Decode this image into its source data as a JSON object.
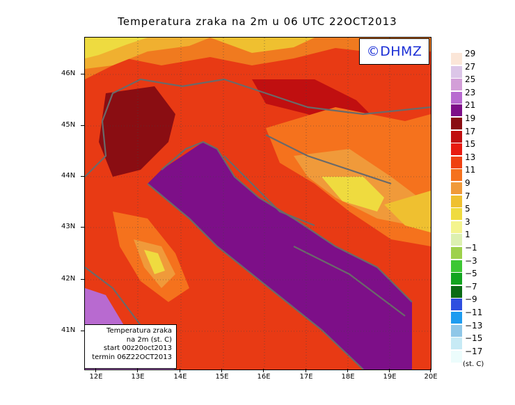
{
  "title": "Temperatura zraka na 2m u 06 UTC 22OCT2013",
  "logo": "©DHMZ",
  "info": {
    "line1": "Temperatura zraka",
    "line2": "na 2m (st. C)",
    "line3": "start 00z20oct2013",
    "line4": "termin 06Z22OCT2013"
  },
  "axes": {
    "lat_labels": [
      "46N",
      "45N",
      "44N",
      "43N",
      "42N",
      "41N"
    ],
    "lon_labels": [
      "12E",
      "13E",
      "14E",
      "15E",
      "16E",
      "17E",
      "18E",
      "19E",
      "20E"
    ]
  },
  "legend": {
    "unit": "(st. C)",
    "labels": [
      "29",
      "27",
      "25",
      "23",
      "21",
      "19",
      "17",
      "15",
      "13",
      "11",
      "9",
      "7",
      "5",
      "3",
      "1",
      "−1",
      "−3",
      "−5",
      "−7",
      "−9",
      "−11",
      "−13",
      "−15",
      "−17"
    ],
    "colors": [
      "#fbe6d8",
      "#dcc6e8",
      "#d39fd8",
      "#b86ad0",
      "#7d0f88",
      "#8a0d12",
      "#c00f10",
      "#e81b10",
      "#ef4111",
      "#f5721d",
      "#f09a3a",
      "#efc030",
      "#efdb3f",
      "#f4f48e",
      "#dcf0b0",
      "#9ed14c",
      "#3cc733",
      "#12a41f",
      "#0a6b15",
      "#2f4fe0",
      "#1e9cf0",
      "#8fc7e8",
      "#c7eaf5",
      "#ecfcfc"
    ]
  }
}
